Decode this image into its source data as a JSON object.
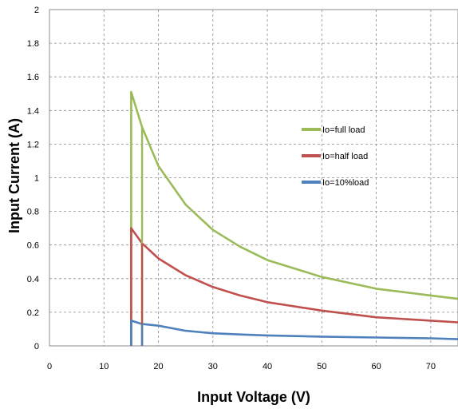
{
  "chart_data": {
    "type": "line",
    "title": "",
    "xlabel": "Input Voltage (V)",
    "ylabel": "Input Current (A)",
    "xlim": [
      0,
      75
    ],
    "ylim": [
      0,
      2
    ],
    "xticks": [
      "0",
      "10",
      "20",
      "30",
      "40",
      "50",
      "60",
      "70"
    ],
    "xtick_values": [
      0,
      10,
      20,
      30,
      40,
      50,
      60,
      70
    ],
    "yticks": [
      "0",
      "0.2",
      "0.4",
      "0.6",
      "0.8",
      "1",
      "1.2",
      "1.4",
      "1.6",
      "1.8",
      "2"
    ],
    "ytick_values": [
      0,
      0.2,
      0.4,
      0.6,
      0.8,
      1.0,
      1.2,
      1.4,
      1.6,
      1.8,
      2.0
    ],
    "grid": true,
    "legend_position": "right-center",
    "series": [
      {
        "name": "Io=full load",
        "color": "#9bbb59",
        "x": [
          15,
          15,
          17,
          20,
          25,
          30,
          35,
          40,
          50,
          60,
          70,
          75
        ],
        "y": [
          0,
          1.51,
          1.3,
          1.07,
          0.84,
          0.69,
          0.59,
          0.51,
          0.41,
          0.34,
          0.3,
          0.28
        ]
      },
      {
        "name": "Io=half load",
        "color": "#c0504d",
        "x": [
          15,
          15,
          17,
          20,
          25,
          30,
          35,
          40,
          50,
          60,
          70,
          75
        ],
        "y": [
          0,
          0.7,
          0.61,
          0.52,
          0.42,
          0.35,
          0.3,
          0.26,
          0.21,
          0.17,
          0.15,
          0.14
        ]
      },
      {
        "name": "Io=10%load",
        "color": "#4f81bd",
        "x": [
          15,
          15,
          17,
          20,
          25,
          30,
          35,
          40,
          50,
          60,
          70,
          75
        ],
        "y": [
          0,
          0.15,
          0.13,
          0.12,
          0.09,
          0.075,
          0.068,
          0.062,
          0.055,
          0.05,
          0.045,
          0.04
        ]
      }
    ],
    "vertical_markers": [
      {
        "x": 17,
        "color": "#9bbb59",
        "y_top": 1.3
      },
      {
        "x": 17,
        "color": "#c0504d",
        "y_top": 0.61
      },
      {
        "x": 17,
        "color": "#4f81bd",
        "y_top": 0.13
      }
    ]
  }
}
